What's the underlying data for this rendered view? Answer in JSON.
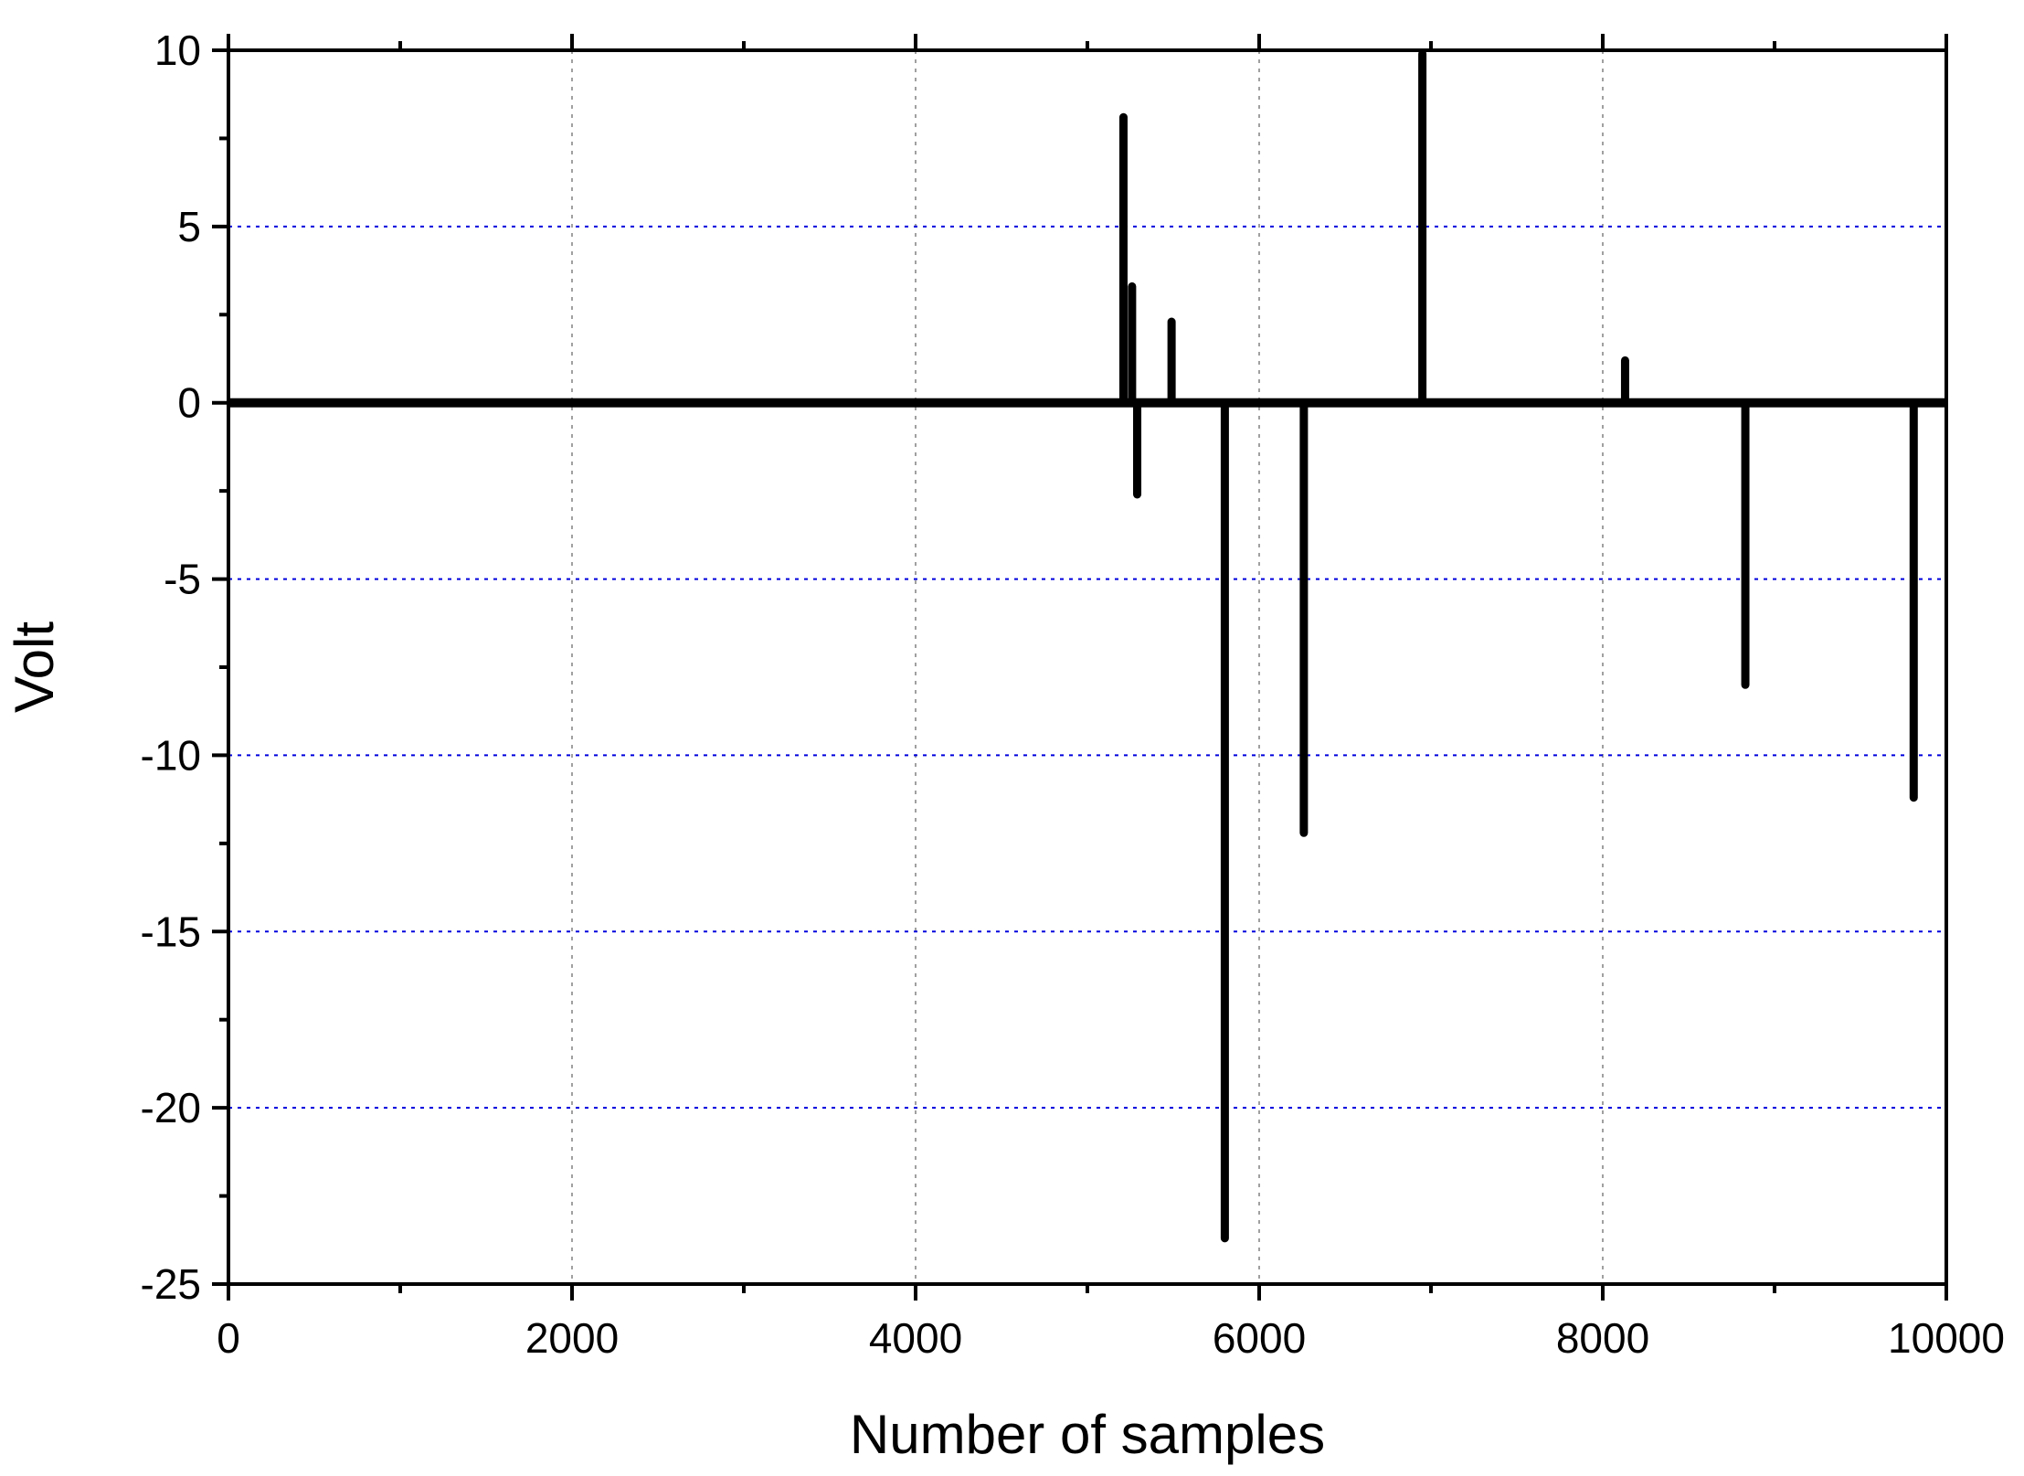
{
  "chart_data": {
    "type": "line",
    "title": "",
    "xlabel": "Number of samples",
    "ylabel": "Volt",
    "xlim": [
      0,
      10000
    ],
    "ylim": [
      -25,
      10
    ],
    "x_ticks": [
      0,
      2000,
      4000,
      6000,
      8000,
      10000
    ],
    "x_tick_labels": [
      "0",
      "2000",
      "4000",
      "6000",
      "8000",
      "10000"
    ],
    "y_ticks": [
      10,
      5,
      0,
      -5,
      -10,
      -15,
      -20,
      -25
    ],
    "y_tick_labels": [
      "10",
      "5",
      "0",
      "-5",
      "-10",
      "-15",
      "-20",
      "-25"
    ],
    "x_grid_lines": [
      2000,
      4000,
      6000,
      8000
    ],
    "y_grid_lines": [
      5,
      -5,
      -10,
      -15,
      -20
    ],
    "x_grid_color": "#a0a0a0",
    "y_grid_color": "#0000dd",
    "line_color": "#000000",
    "baseline": 0,
    "series": [
      {
        "x": [
          5210,
          5260,
          5290,
          5490,
          5800,
          6260,
          6950,
          8130,
          8830,
          9810
        ],
        "values": [
          8.1,
          3.3,
          -2.6,
          2.3,
          -23.7,
          -12.2,
          9.9,
          1.2,
          -8.0,
          -11.2
        ]
      }
    ]
  }
}
